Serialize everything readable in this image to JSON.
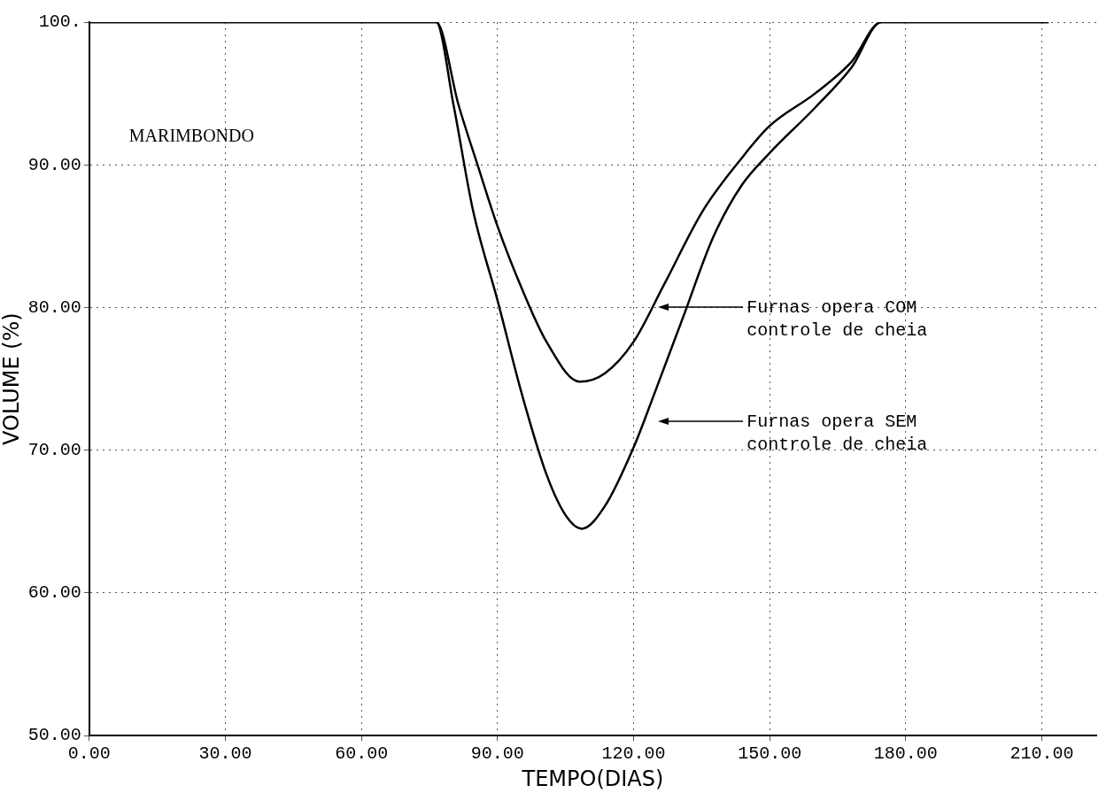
{
  "chart_data": {
    "type": "line",
    "xlabel": "TEMPO(DIAS)",
    "ylabel": "VOLUME (%)",
    "xlim": [
      0,
      222
    ],
    "ylim": [
      50,
      100
    ],
    "xticks": [
      {
        "value": 0,
        "label": "0.00"
      },
      {
        "value": 30,
        "label": "30.00"
      },
      {
        "value": 60,
        "label": "60.00"
      },
      {
        "value": 90,
        "label": "90.00"
      },
      {
        "value": 120,
        "label": "120.00"
      },
      {
        "value": 150,
        "label": "150.00"
      },
      {
        "value": 180,
        "label": "180.00"
      },
      {
        "value": 210,
        "label": "210.00"
      }
    ],
    "yticks": [
      {
        "value": 50,
        "label": "50.00"
      },
      {
        "value": 60,
        "label": "60.00"
      },
      {
        "value": 70,
        "label": "70.00"
      },
      {
        "value": 80,
        "label": "80.00"
      },
      {
        "value": 90,
        "label": "90.00"
      },
      {
        "value": 100,
        "label": "100."
      }
    ],
    "grid": true,
    "legend": false,
    "marker": "none",
    "line_style": "solid",
    "series": [
      {
        "color": "#000000",
        "x": [
          0,
          76.5,
          81.4,
          85.7,
          90,
          95.4,
          100.8,
          108.1,
          113.7,
          120,
          126.7,
          135.3,
          143.9,
          149.9,
          160,
          168,
          174.6,
          211.5
        ],
        "values": [
          100,
          100,
          94.2,
          89.9,
          85.7,
          81.3,
          77.6,
          74.8,
          75.4,
          77.6,
          81.6,
          86.8,
          90.5,
          92.7,
          95,
          97.2,
          100,
          100
        ]
      },
      {
        "color": "#000000",
        "x": [
          0,
          76.5,
          80.3,
          84.6,
          90,
          95.4,
          100.8,
          105.1,
          108.6,
          113.7,
          120,
          124.5,
          131,
          137.5,
          143.9,
          149.9,
          160,
          168,
          174.6,
          211.5
        ],
        "values": [
          100,
          100,
          94.2,
          86.8,
          80.5,
          73.9,
          68.3,
          65.4,
          64.5,
          66.1,
          70.2,
          73.9,
          79.4,
          84.9,
          88.6,
          90.8,
          94,
          96.8,
          100,
          100
        ]
      }
    ],
    "annotations": [
      "MARIMBONDO",
      "Furnas opera COM\ncontrole de cheia",
      "Furnas opera SEM\ncontrole de cheia"
    ]
  }
}
